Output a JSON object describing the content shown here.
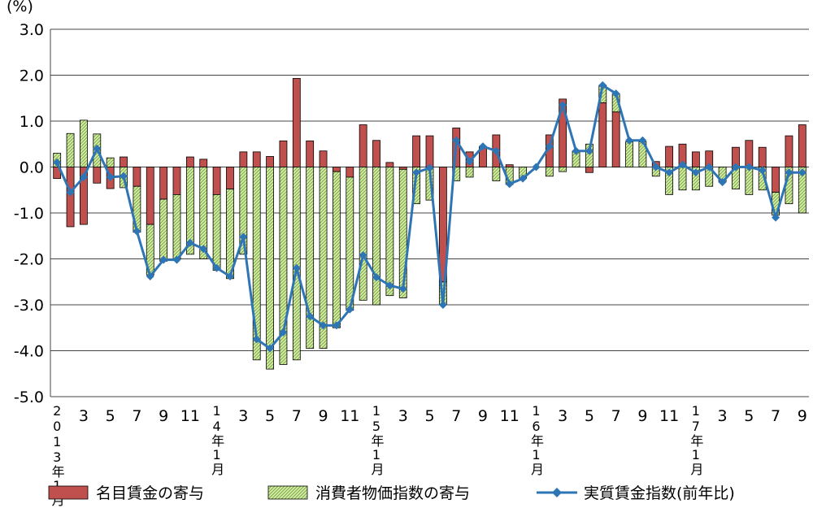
{
  "chart_data": {
    "type": "bar_line",
    "y_unit": "(%)",
    "categories": [
      "2013年1月",
      null,
      "3",
      null,
      "5",
      null,
      "7",
      null,
      "9",
      null,
      "11",
      null,
      "14年1月",
      null,
      "3",
      null,
      "5",
      null,
      "7",
      null,
      "9",
      null,
      "11",
      null,
      "15年1月",
      null,
      "3",
      null,
      "5",
      null,
      "7",
      null,
      "9",
      null,
      "11",
      null,
      "16年1月",
      null,
      "3",
      null,
      "5",
      null,
      "7",
      null,
      "9",
      null,
      "11",
      null,
      "17年1月",
      null,
      "3",
      null,
      "5",
      null,
      "7",
      null,
      "9"
    ],
    "series": [
      {
        "name": "名目賃金の寄与",
        "color": "#c0504d",
        "kind": "bar",
        "values": [
          -0.25,
          -1.3,
          -1.25,
          -0.35,
          -0.47,
          0.22,
          -0.42,
          -1.25,
          -0.7,
          -0.6,
          0.22,
          0.17,
          -0.6,
          -0.48,
          0.33,
          0.33,
          0.23,
          0.57,
          1.93,
          0.57,
          0.35,
          -0.1,
          -0.22,
          0.92,
          0.58,
          0.1,
          -0.05,
          0.68,
          0.68,
          -2.5,
          0.85,
          0.33,
          0.45,
          0.7,
          0.05,
          0,
          0,
          0.7,
          1.48,
          0,
          -0.12,
          1.4,
          1.2,
          0,
          0,
          0.12,
          0.45,
          0.5,
          0.33,
          0.35,
          0,
          0.43,
          0.58,
          0.43,
          -0.55,
          0.68,
          0.92
        ]
      },
      {
        "name": "消費者物価指数の寄与",
        "color": "#c6e08f",
        "kind": "hatched-bar",
        "values": [
          0.3,
          0.73,
          1.02,
          0.72,
          0.2,
          -0.45,
          -1.0,
          -1.1,
          -1.35,
          -1.4,
          -1.9,
          -2.0,
          -1.65,
          -1.95,
          -1.9,
          -4.2,
          -4.4,
          -4.3,
          -4.2,
          -3.95,
          -3.95,
          -3.4,
          -2.9,
          -2.9,
          -3.0,
          -2.8,
          -2.8,
          -0.8,
          -0.72,
          -0.5,
          -0.3,
          -0.22,
          0,
          -0.3,
          -0.38,
          -0.25,
          0,
          -0.2,
          -0.1,
          0.35,
          0.5,
          0.38,
          0.4,
          0.55,
          0.55,
          -0.2,
          -0.6,
          -0.5,
          -0.5,
          -0.42,
          -0.33,
          -0.48,
          -0.6,
          -0.5,
          -0.5,
          -0.8,
          -1.0
        ]
      },
      {
        "name": "実質賃金指数(前年比)",
        "color": "#2e75b6",
        "kind": "line",
        "values": [
          0.1,
          -0.55,
          -0.22,
          0.4,
          -0.22,
          -0.2,
          -1.4,
          -2.38,
          -2.02,
          -2.02,
          -1.65,
          -1.78,
          -2.2,
          -2.38,
          -1.52,
          -3.75,
          -3.95,
          -3.6,
          -2.2,
          -3.25,
          -3.45,
          -3.45,
          -3.1,
          -1.92,
          -2.4,
          -2.58,
          -2.65,
          -0.12,
          -0.02,
          -3.0,
          0.58,
          0.12,
          0.45,
          0.35,
          -0.37,
          -0.25,
          0,
          0.45,
          1.35,
          0.35,
          0.35,
          1.78,
          1.6,
          0.58,
          0.58,
          0,
          -0.12,
          0.05,
          -0.12,
          0,
          -0.33,
          0,
          0,
          -0.07,
          -1.1,
          -0.12,
          -0.12
        ]
      }
    ],
    "ylim": [
      -5,
      3
    ],
    "yticks": [
      {
        "value": -5,
        "label": "-5.0"
      },
      {
        "value": -4,
        "label": "-4.0"
      },
      {
        "value": -3,
        "label": "-3.0"
      },
      {
        "value": -2,
        "label": "-2.0"
      },
      {
        "value": -1,
        "label": "-1.0"
      },
      {
        "value": 0,
        "label": "0.0"
      },
      {
        "value": 1,
        "label": "1.0"
      },
      {
        "value": 2,
        "label": "2.0"
      },
      {
        "value": 3,
        "label": "3.0"
      }
    ],
    "grid": true
  }
}
